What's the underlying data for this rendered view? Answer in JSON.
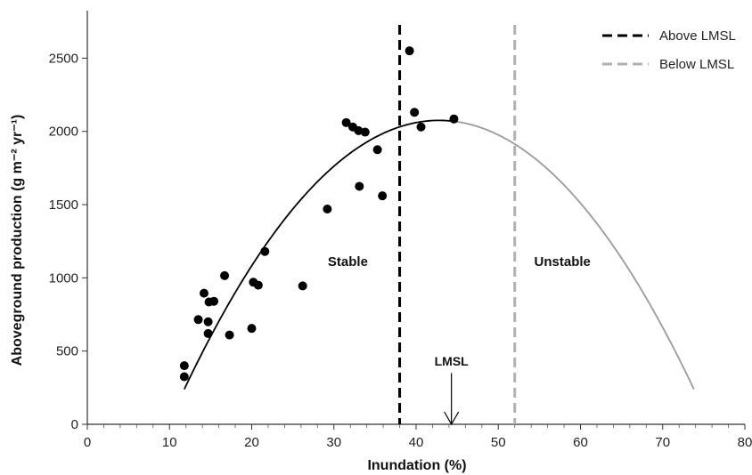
{
  "chart_data": {
    "type": "scatter",
    "title": "",
    "xlabel": "Inundation (%)",
    "ylabel": "Aboveground production (g m⁻² yr⁻¹)",
    "xlim": [
      0,
      80
    ],
    "ylim": [
      0,
      2800
    ],
    "x_ticks": [
      0,
      10,
      20,
      30,
      40,
      50,
      60,
      70,
      80
    ],
    "y_ticks": [
      0,
      500,
      1000,
      1500,
      2000,
      2500
    ],
    "grid": false,
    "legend_position": "top-right",
    "legend": [
      {
        "label": "Above LMSL",
        "color": "#000000",
        "style": "dashed"
      },
      {
        "label": "Below LMSL",
        "color": "#b0b0b0",
        "style": "dashed"
      }
    ],
    "points": [
      {
        "x": 11.8,
        "y": 400
      },
      {
        "x": 11.8,
        "y": 325
      },
      {
        "x": 13.5,
        "y": 715
      },
      {
        "x": 14.2,
        "y": 895
      },
      {
        "x": 14.7,
        "y": 700
      },
      {
        "x": 14.7,
        "y": 620
      },
      {
        "x": 14.8,
        "y": 835
      },
      {
        "x": 15.4,
        "y": 840
      },
      {
        "x": 16.7,
        "y": 1015
      },
      {
        "x": 17.3,
        "y": 610
      },
      {
        "x": 20.0,
        "y": 655
      },
      {
        "x": 20.2,
        "y": 970
      },
      {
        "x": 20.8,
        "y": 950
      },
      {
        "x": 21.6,
        "y": 1180
      },
      {
        "x": 26.2,
        "y": 945
      },
      {
        "x": 29.2,
        "y": 1470
      },
      {
        "x": 31.5,
        "y": 2060
      },
      {
        "x": 32.3,
        "y": 2030
      },
      {
        "x": 33.0,
        "y": 2005
      },
      {
        "x": 33.8,
        "y": 1995
      },
      {
        "x": 33.1,
        "y": 1625
      },
      {
        "x": 35.3,
        "y": 1875
      },
      {
        "x": 35.9,
        "y": 1560
      },
      {
        "x": 39.2,
        "y": 2550
      },
      {
        "x": 39.8,
        "y": 2130
      },
      {
        "x": 40.6,
        "y": 2030
      },
      {
        "x": 44.6,
        "y": 2085
      }
    ],
    "fit_curve": {
      "type": "quadratic",
      "vertex_x": 42.8,
      "vertex_y": 2075,
      "a": -1.91,
      "x_range": [
        11.8,
        73.8
      ],
      "split_x": 44.6,
      "color_above": "#000000",
      "color_below": "#9a9a9a"
    },
    "vlines": [
      {
        "x": 38.0,
        "color": "#000000",
        "style": "dashed"
      },
      {
        "x": 52.0,
        "color": "#b0b0b0",
        "style": "dashed"
      }
    ],
    "annotations": [
      {
        "text": "Stable",
        "x": 31.7,
        "y": 1080
      },
      {
        "text": "Unstable",
        "x": 57.8,
        "y": 1080
      }
    ],
    "marker": {
      "text": "LMSL",
      "x": 44.3,
      "arrow_top_y": 350,
      "label_y": 400
    }
  }
}
